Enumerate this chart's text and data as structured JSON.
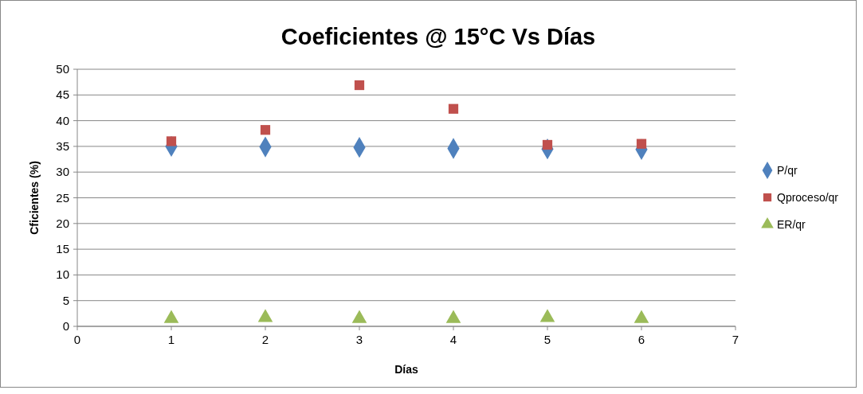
{
  "chart_data": {
    "type": "scatter",
    "title": "Coeficientes @ 15°C Vs Días",
    "xlabel": "Días",
    "ylabel": "Cficientes (%)",
    "x": [
      1,
      2,
      3,
      4,
      5,
      6
    ],
    "series": [
      {
        "name": "P/qr",
        "color": "#4f81bd",
        "marker": "diamond",
        "values": [
          35.0,
          34.9,
          34.8,
          34.6,
          34.5,
          34.4
        ]
      },
      {
        "name": "Qproceso/qr",
        "color": "#c0504d",
        "marker": "square",
        "values": [
          36.0,
          38.2,
          46.9,
          42.3,
          35.3,
          35.5
        ]
      },
      {
        "name": "ER/qr",
        "color": "#9bbb59",
        "marker": "triangle",
        "values": [
          1.5,
          1.7,
          1.5,
          1.5,
          1.7,
          1.5
        ]
      }
    ],
    "xlim": [
      0,
      7
    ],
    "xticks": [
      0,
      1,
      2,
      3,
      4,
      5,
      6,
      7
    ],
    "ylim": [
      0,
      50
    ],
    "yticks": [
      0,
      5,
      10,
      15,
      20,
      25,
      30,
      35,
      40,
      45,
      50
    ],
    "grid": "y",
    "legend": "right"
  }
}
